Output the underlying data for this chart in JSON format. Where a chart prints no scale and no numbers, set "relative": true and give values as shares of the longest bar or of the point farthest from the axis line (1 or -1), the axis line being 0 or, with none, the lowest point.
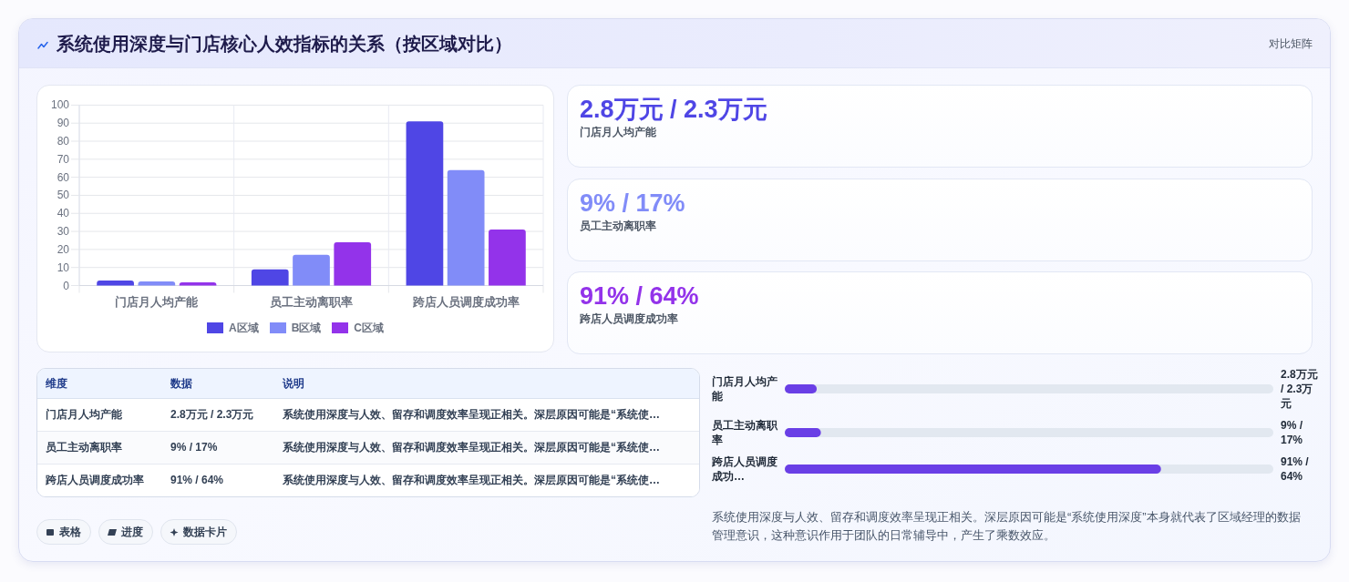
{
  "chart_data": [
    {
      "type": "other",
      "title": "系统使用深度与门店核心人效指标的关系（按区域对比）",
      "annotations": [
        "对比矩阵"
      ]
    },
    {
      "type": "bar",
      "categories": [
        "门店月人均产能",
        "员工主动离职率",
        "跨店人员调度成功率"
      ],
      "series": [
        {
          "name": "A区域",
          "color": "#4f46e5",
          "values": [
            2.8,
            9,
            91
          ]
        },
        {
          "name": "B区域",
          "color": "#818cf8",
          "values": [
            2.3,
            17,
            64
          ]
        },
        {
          "name": "C区域",
          "color": "#9333ea",
          "values": [
            1.8,
            24,
            31
          ]
        }
      ],
      "ylim": [
        0,
        100
      ],
      "yticks": [
        0,
        10,
        20,
        30,
        40,
        50,
        60,
        70,
        80,
        90,
        100
      ],
      "grid": true,
      "legend": "bottom"
    },
    {
      "type": "other",
      "annotations": [
        "2.8万元 / 2.3万元",
        "门店月人均产能",
        "9% / 17%",
        "员工主动离职率",
        "91% / 64%",
        "跨店人员调度成功率"
      ]
    },
    {
      "type": "other",
      "categories": [
        "维度",
        "数据",
        "说明"
      ],
      "annotations": [
        "门店月人均产能",
        "2.8万元 / 2.3万元",
        "系统使用深度与人效、留存和调度效率呈现正相关。深层原因可能是“系统使…",
        "员工主动离职率",
        "9% / 17%",
        "系统使用深度与人效、留存和调度效率呈现正相关。深层原因可能是“系统使…",
        "跨店人员调度成功率",
        "91% / 64%",
        "系统使用深度与人效、留存和调度效率呈现正相关。深层原因可能是“系统使…"
      ]
    },
    {
      "type": "bar",
      "orientation": "horizontal",
      "relative": true,
      "categories": [
        "门店月人均产能",
        "员工主动离职率",
        "跨店人员调度成功…"
      ],
      "values": [
        0.085,
        0.096,
        1
      ],
      "color": "#6a3fe6",
      "annotations": [
        "2.8万元 / 2.3万元",
        "9% / 17%",
        "91% / 64%",
        "系统使用深度与人效、留存和调度效率呈现正相关。深层原因可能是“系统使用深度”本身就代表了区域经理的数据管理意识，这种意识作用于团队的日常辅导中，产生了乘数效应。"
      ]
    },
    {
      "type": "other",
      "annotations": [
        "表格",
        "进度",
        "数据卡片"
      ]
    }
  ]
}
